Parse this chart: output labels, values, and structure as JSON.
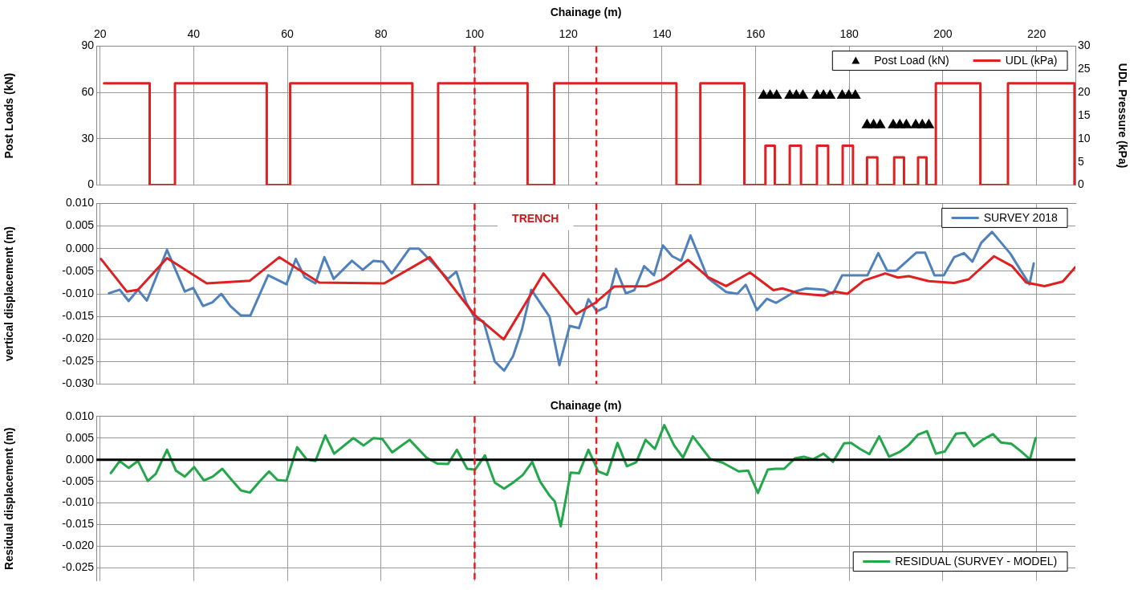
{
  "chart_data": [
    {
      "type": "step",
      "xlabel": "Chainage (m)",
      "ylabel": "Post Loads (kN)",
      "y2label": "UDL Pressure (kPa)",
      "xlim": [
        19.2,
        228.3
      ],
      "xticks": [
        20,
        40,
        60,
        80,
        100,
        120,
        140,
        160,
        180,
        200,
        220
      ],
      "ylim": [
        0,
        90
      ],
      "yticks": [
        0,
        30,
        60,
        90
      ],
      "y2lim": [
        0,
        30
      ],
      "y2ticks": [
        0,
        5,
        10,
        15,
        20,
        25,
        30
      ],
      "grid": true,
      "legend": "top right",
      "ref_lines": [
        {
          "axis": "x",
          "value": 100,
          "color": "#e02020",
          "line_style": "dashed"
        },
        {
          "axis": "x",
          "value": 126,
          "color": "#e02020",
          "line_style": "dashed"
        }
      ],
      "series": [
        {
          "name": "Post Load (kN)",
          "type": "scatter",
          "marker": "triangle",
          "color": "#000000",
          "x": [
            161.7,
            163.1,
            164.5,
            167.3,
            168.7,
            170.1,
            173.1,
            174.5,
            175.9,
            178.5,
            179.9,
            181.3,
            183.8,
            185.2,
            186.6,
            189.4,
            190.8,
            192.2,
            194.2,
            195.6,
            197.0
          ],
          "values": [
            58,
            58,
            58,
            58,
            58,
            58,
            58,
            58,
            58,
            58,
            58,
            58,
            39,
            39,
            39,
            39,
            39,
            39,
            39,
            39,
            39
          ]
        },
        {
          "name": "UDL (kPa)",
          "axis": "y2",
          "color": "#e02020",
          "x": [
            20.85,
            30.6,
            36.0,
            55.6,
            60.6,
            86.7,
            92.2,
            111.3,
            117.0,
            143.1,
            148.2,
            157.6,
            162.1,
            164.1,
            167.3,
            169.7,
            173.1,
            175.5,
            178.6,
            180.8,
            183.8,
            186.0,
            189.6,
            191.7,
            194.7,
            196.5,
            198.5,
            208.0,
            213.9,
            228.1
          ],
          "values": [
            22,
            0,
            22,
            0,
            22,
            0,
            22,
            0,
            22,
            0,
            22,
            0,
            8.5,
            0,
            8.5,
            0,
            8.5,
            0,
            8.5,
            0,
            6,
            0,
            6,
            0,
            6,
            0,
            22,
            0,
            22,
            0
          ]
        }
      ]
    },
    {
      "type": "line",
      "ylabel": "vertical displacement (m)",
      "xlim": [
        19.2,
        228.3
      ],
      "xticks": [
        20,
        40,
        60,
        80,
        100,
        120,
        140,
        160,
        180,
        200,
        220
      ],
      "ylim": [
        -0.03,
        0.01
      ],
      "yticks": [
        {
          "value": -0.03,
          "label": "-0.030"
        },
        {
          "value": -0.025,
          "label": "-0.025"
        },
        {
          "value": -0.02,
          "label": "-0.020"
        },
        {
          "value": -0.015,
          "label": "-0.015"
        },
        {
          "value": -0.01,
          "label": "-0.010"
        },
        {
          "value": -0.005,
          "label": "-0.005"
        },
        {
          "value": 0,
          "label": "0.000"
        },
        {
          "value": 0.005,
          "label": "0.005"
        },
        {
          "value": 0.01,
          "label": "0.010"
        }
      ],
      "tick_labels": "y",
      "grid": true,
      "legend": "top right",
      "annotations": [
        "TRENCH"
      ],
      "ref_lines": [
        {
          "axis": "x",
          "value": 100,
          "color": "#e02020",
          "line_style": "dashed"
        },
        {
          "axis": "x",
          "value": 126,
          "color": "#e02020",
          "line_style": "dashed"
        }
      ],
      "series": [
        {
          "color": "#e02020",
          "x": [
            20.2,
            25.7,
            28.1,
            34.3,
            42.8,
            52.0,
            58.3,
            66.8,
            80.7,
            90.4,
            100.0,
            106.2,
            114.7,
            121.7,
            125.9,
            129.8,
            136.8,
            140.2,
            145.6,
            149.8,
            153.7,
            158.8,
            163.8,
            165.7,
            169.2,
            174.6,
            176.9,
            179.6,
            183.1,
            187.7,
            190.4,
            192.7,
            197.0,
            202.4,
            205.5,
            210.9,
            214.8,
            217.8,
            221.7,
            225.6,
            228.3
          ],
          "values": [
            -0.0023,
            -0.0095,
            -0.0091,
            -0.0021,
            -0.0077,
            -0.0071,
            -0.0019,
            -0.0075,
            -0.0077,
            -0.0019,
            -0.0147,
            -0.0201,
            -0.0055,
            -0.0145,
            -0.0119,
            -0.0084,
            -0.0083,
            -0.0068,
            -0.0025,
            -0.0063,
            -0.0083,
            -0.0053,
            -0.0092,
            -0.0088,
            -0.0099,
            -0.0104,
            -0.0095,
            -0.01,
            -0.0071,
            -0.0055,
            -0.0064,
            -0.0061,
            -0.0072,
            -0.0076,
            -0.0068,
            -0.0017,
            -0.0039,
            -0.0075,
            -0.0083,
            -0.0073,
            -0.0041
          ]
        },
        {
          "name": "SURVEY 2018",
          "color": "#4f81bd",
          "x": [
            21.9,
            24.2,
            26.1,
            28.1,
            30.0,
            34.3,
            38.1,
            39.9,
            42.0,
            44.0,
            45.9,
            47.8,
            50.1,
            52.1,
            55.9,
            59.8,
            61.8,
            63.7,
            66.0,
            67.9,
            69.9,
            73.8,
            76.1,
            78.4,
            80.4,
            82.3,
            86.1,
            88.1,
            94.3,
            96.1,
            98.2,
            100.1,
            101.9,
            104.3,
            106.3,
            108.2,
            110.1,
            112.1,
            116.0,
            118.1,
            120.3,
            122.3,
            124.3,
            126.1,
            128.1,
            130.2,
            132.3,
            134.1,
            136.2,
            138.3,
            140.2,
            142.2,
            144.1,
            146.1,
            149.8,
            153.7,
            156.1,
            157.9,
            160.3,
            162.4,
            164.4,
            168.4,
            170.8,
            174.6,
            176.5,
            178.5,
            183.9,
            186.2,
            188.1,
            190.0,
            194.3,
            196.2,
            198.2,
            200.2,
            202.4,
            204.5,
            206.3,
            208.2,
            210.5,
            214.4,
            216.3,
            218.5,
            219.4
          ],
          "values": [
            -0.0099,
            -0.0091,
            -0.0116,
            -0.0091,
            -0.0115,
            -0.0003,
            -0.0095,
            -0.0087,
            -0.0127,
            -0.0119,
            -0.01,
            -0.0127,
            -0.0148,
            -0.0148,
            -0.0059,
            -0.0079,
            -0.0023,
            -0.0063,
            -0.0077,
            -0.0019,
            -0.0067,
            -0.0027,
            -0.0047,
            -0.0027,
            -0.0029,
            -0.0055,
            0.0,
            0.0,
            -0.0067,
            -0.0051,
            -0.0119,
            -0.0155,
            -0.0161,
            -0.025,
            -0.027,
            -0.0238,
            -0.0179,
            -0.0091,
            -0.0151,
            -0.0258,
            -0.0171,
            -0.0176,
            -0.0112,
            -0.0139,
            -0.0129,
            -0.0045,
            -0.0099,
            -0.0092,
            -0.0039,
            -0.0059,
            0.0007,
            -0.0017,
            -0.0027,
            0.0029,
            -0.0065,
            -0.0096,
            -0.01,
            -0.008,
            -0.0136,
            -0.0111,
            -0.012,
            -0.0095,
            -0.0088,
            -0.0091,
            -0.01,
            -0.0059,
            -0.0059,
            -0.001,
            -0.0049,
            -0.0049,
            -0.0009,
            -0.0009,
            -0.0059,
            -0.0059,
            -0.0019,
            -0.001,
            -0.0029,
            0.0013,
            0.0037,
            -0.0011,
            -0.0043,
            -0.0079,
            -0.0033
          ]
        }
      ]
    },
    {
      "type": "line",
      "xlabel": "Chainage (m)",
      "ylabel": "Residual displacement (m)",
      "xlim": [
        19.2,
        228.3
      ],
      "xticks": [
        20,
        40,
        60,
        80,
        100,
        120,
        140,
        160,
        180,
        200,
        220
      ],
      "ylim": [
        -0.028,
        0.01
      ],
      "yticks": [
        {
          "value": -0.025,
          "label": "-0.025"
        },
        {
          "value": -0.02,
          "label": "-0.020"
        },
        {
          "value": -0.015,
          "label": "-0.015"
        },
        {
          "value": -0.01,
          "label": "-0.010"
        },
        {
          "value": -0.005,
          "label": "-0.005"
        },
        {
          "value": 0,
          "label": "0.000"
        },
        {
          "value": 0.005,
          "label": "0.005"
        },
        {
          "value": 0.01,
          "label": "0.010"
        }
      ],
      "tick_labels": "y",
      "grid": true,
      "legend": "bottom right",
      "ref_lines": [
        {
          "axis": "y",
          "value": 0,
          "color": "#000000",
          "line_style": "solid"
        },
        {
          "axis": "x",
          "value": 100,
          "color": "#e02020",
          "line_style": "dashed"
        },
        {
          "axis": "x",
          "value": 126,
          "color": "#e02020",
          "line_style": "dashed"
        }
      ],
      "series": [
        {
          "name": "RESIDUAL (SURVEY - MODEL)",
          "color": "#22a84a",
          "x": [
            22.3,
            24.2,
            26.1,
            28.1,
            30.2,
            31.9,
            34.3,
            36.2,
            38.1,
            40.1,
            42.2,
            44.1,
            46.1,
            48.2,
            50.1,
            52.0,
            54.0,
            56.1,
            57.9,
            59.8,
            62.1,
            64.1,
            66.0,
            68.1,
            70.0,
            74.1,
            76.3,
            78.4,
            80.3,
            82.4,
            86.1,
            89.7,
            92.0,
            94.3,
            96.2,
            98.4,
            100.1,
            102.2,
            104.3,
            106.3,
            108.2,
            110.3,
            112.3,
            114.0,
            116.0,
            117.1,
            118.4,
            120.5,
            122.3,
            124.3,
            126.4,
            128.3,
            130.5,
            132.5,
            134.5,
            136.5,
            138.5,
            140.5,
            142.6,
            144.5,
            146.6,
            150.3,
            153.0,
            156.4,
            158.4,
            160.5,
            162.6,
            164.2,
            166.1,
            168.4,
            170.3,
            172.3,
            174.5,
            176.5,
            178.9,
            180.4,
            182.3,
            184.3,
            186.4,
            188.5,
            190.8,
            192.7,
            194.7,
            196.6,
            198.5,
            200.4,
            202.8,
            204.7,
            206.6,
            208.6,
            210.7,
            212.4,
            214.6,
            216.5,
            218.6,
            219.8
          ],
          "values": [
            -0.0031,
            -0.0003,
            -0.0019,
            -0.0003,
            -0.0049,
            -0.0033,
            0.0023,
            -0.0025,
            -0.0039,
            -0.0017,
            -0.0048,
            -0.0039,
            -0.0021,
            -0.0048,
            -0.0071,
            -0.0076,
            -0.0051,
            -0.0027,
            -0.0047,
            -0.0049,
            0.0029,
            0.0001,
            -0.0003,
            0.0056,
            0.0014,
            0.005,
            0.0033,
            0.005,
            0.0048,
            0.0017,
            0.0046,
            0.0005,
            -0.0009,
            -0.001,
            0.0023,
            -0.0021,
            -0.0023,
            0.001,
            -0.0053,
            -0.0067,
            -0.0053,
            -0.0035,
            -0.0005,
            -0.0051,
            -0.0083,
            -0.0096,
            -0.0154,
            -0.003,
            -0.0031,
            0.0023,
            -0.0027,
            -0.0035,
            0.0039,
            -0.0015,
            -0.0006,
            0.0046,
            0.0025,
            0.008,
            0.0033,
            0.0005,
            0.0054,
            0.0002,
            -0.0007,
            -0.0027,
            -0.0025,
            -0.0077,
            -0.0023,
            -0.0021,
            -0.0021,
            0.0003,
            0.0007,
            0.0001,
            0.0014,
            -0.0005,
            0.0038,
            0.0039,
            0.0025,
            0.0013,
            0.0054,
            0.0007,
            0.0018,
            0.0034,
            0.0058,
            0.0066,
            0.0014,
            0.0019,
            0.006,
            0.0062,
            0.0031,
            0.0047,
            0.0059,
            0.004,
            0.0037,
            0.0021,
            0.0001,
            0.005
          ]
        }
      ]
    }
  ]
}
